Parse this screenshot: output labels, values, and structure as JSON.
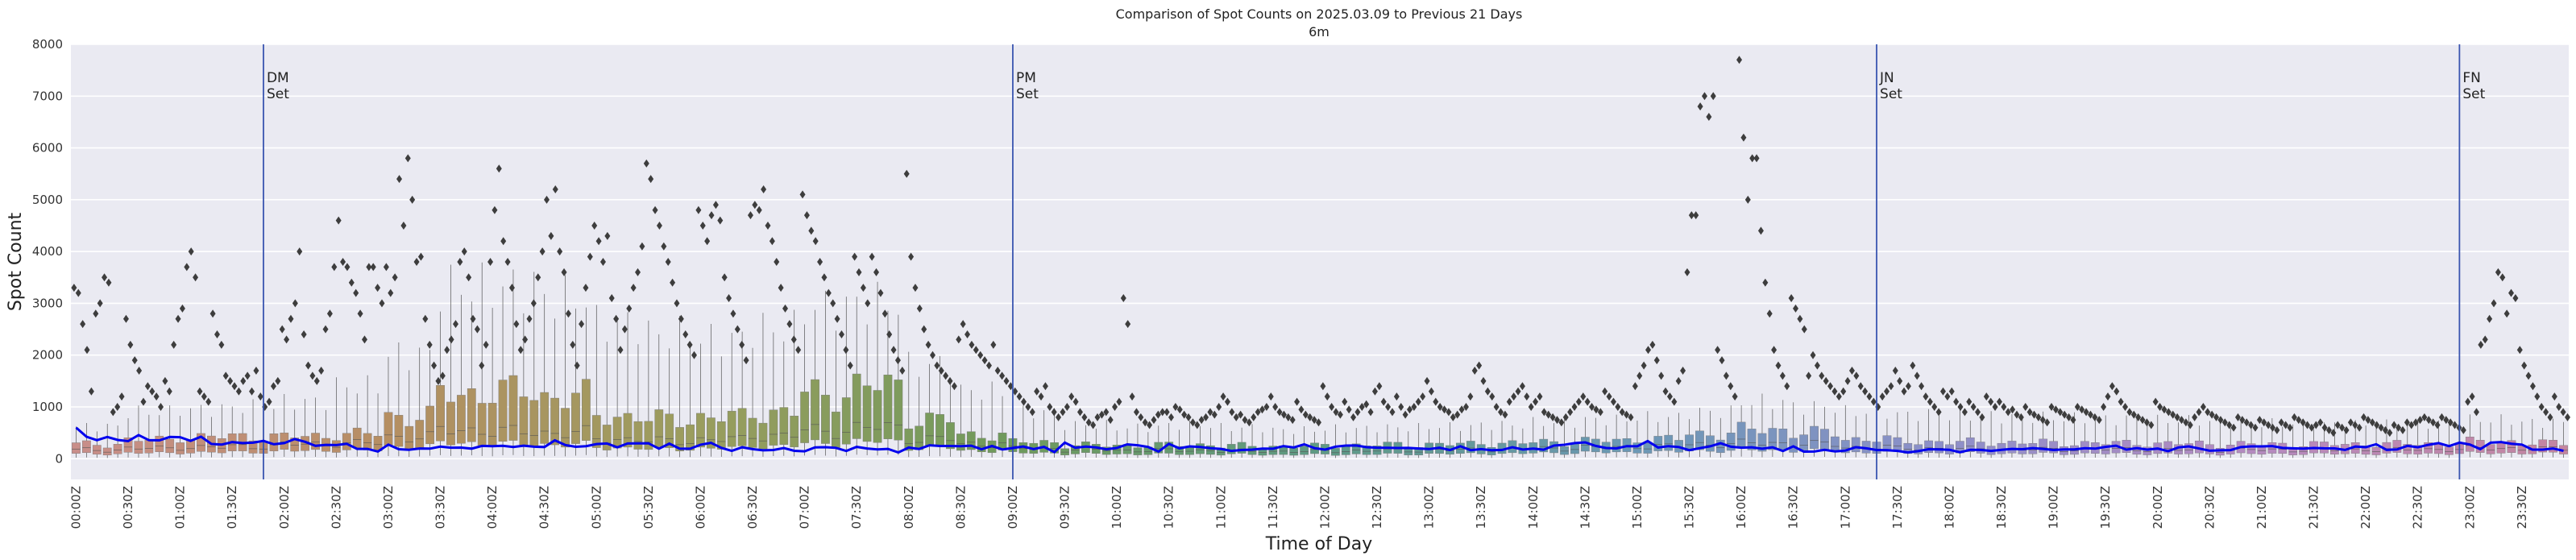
{
  "chart_data": {
    "type": "box",
    "title": "Comparison of Spot Counts on 2025.03.09 to Previous 21 Days",
    "subtitle": "6m",
    "xlabel": "Time of Day",
    "ylabel": "Spot Count",
    "ylim": [
      -400,
      8000
    ],
    "yticks": [
      0,
      1000,
      2000,
      3000,
      4000,
      5000,
      6000,
      7000,
      8000
    ],
    "xticks": [
      "00:00Z",
      "00:30Z",
      "01:00Z",
      "01:30Z",
      "02:00Z",
      "02:30Z",
      "03:00Z",
      "03:30Z",
      "04:00Z",
      "04:30Z",
      "05:00Z",
      "05:30Z",
      "06:00Z",
      "06:30Z",
      "07:00Z",
      "07:30Z",
      "08:00Z",
      "08:30Z",
      "09:00Z",
      "09:30Z",
      "10:00Z",
      "10:30Z",
      "11:00Z",
      "11:30Z",
      "12:00Z",
      "12:30Z",
      "13:00Z",
      "13:30Z",
      "14:00Z",
      "14:30Z",
      "15:00Z",
      "15:30Z",
      "16:00Z",
      "16:30Z",
      "17:00Z",
      "17:30Z",
      "18:00Z",
      "18:30Z",
      "19:00Z",
      "19:30Z",
      "20:00Z",
      "20:30Z",
      "21:00Z",
      "21:30Z",
      "22:00Z",
      "22:30Z",
      "23:00Z",
      "23:30Z"
    ],
    "slot_minutes": 6,
    "slots_per_day": 240,
    "grid": true,
    "colors": {
      "background": "#eaeaf2",
      "grid": "#ffffff",
      "current_day_line": "#0000ee",
      "event_line": "#3a55b0",
      "outlier": "#3d3d3d",
      "whisker": "#555555",
      "box_colors": [
        "#c98e8a",
        "#b58e62",
        "#9a9d5e",
        "#6f9a5c",
        "#5e9a85",
        "#6b98b5",
        "#8d8fc9",
        "#b58ac0",
        "#c485a0"
      ]
    },
    "box_profile_note": "per 30-minute block: [median, q3, upper whisker] in spot counts",
    "box_profile": [
      [
        170,
        280,
        620
      ],
      [
        200,
        360,
        900
      ],
      [
        220,
        420,
        950
      ],
      [
        240,
        430,
        1000
      ],
      [
        280,
        430,
        1100
      ],
      [
        300,
        480,
        1400
      ],
      [
        420,
        820,
        2000
      ],
      [
        550,
        1250,
        3300
      ],
      [
        520,
        1300,
        3300
      ],
      [
        500,
        1200,
        3100
      ],
      [
        380,
        820,
        2600
      ],
      [
        340,
        760,
        2400
      ],
      [
        370,
        800,
        2300
      ],
      [
        450,
        900,
        2500
      ],
      [
        540,
        1250,
        2900
      ],
      [
        600,
        1400,
        3000
      ],
      [
        380,
        760,
        1800
      ],
      [
        280,
        460,
        1300
      ],
      [
        200,
        320,
        900
      ],
      [
        170,
        260,
        650
      ],
      [
        160,
        260,
        600
      ],
      [
        160,
        270,
        650
      ],
      [
        150,
        250,
        600
      ],
      [
        140,
        240,
        550
      ],
      [
        150,
        260,
        580
      ],
      [
        160,
        270,
        600
      ],
      [
        170,
        280,
        620
      ],
      [
        180,
        300,
        650
      ],
      [
        200,
        320,
        700
      ],
      [
        220,
        350,
        750
      ],
      [
        240,
        380,
        800
      ],
      [
        280,
        480,
        900
      ],
      [
        300,
        560,
        1100
      ],
      [
        280,
        500,
        1000
      ],
      [
        220,
        380,
        900
      ],
      [
        200,
        330,
        850
      ],
      [
        190,
        320,
        820
      ],
      [
        180,
        310,
        800
      ],
      [
        180,
        300,
        780
      ],
      [
        180,
        300,
        760
      ],
      [
        170,
        290,
        740
      ],
      [
        170,
        280,
        700
      ],
      [
        170,
        280,
        680
      ],
      [
        170,
        280,
        660
      ],
      [
        175,
        285,
        660
      ],
      [
        180,
        290,
        680
      ],
      [
        200,
        330,
        750
      ],
      [
        190,
        300,
        700
      ]
    ],
    "series": [
      {
        "values_note": "spot counts per 6-minute slot, on 2025.03.09",
        "values": [
          600,
          424,
          357,
          420,
          362,
          339,
          457,
          357,
          355,
          420,
          415,
          344,
          425,
          285,
          274,
          320,
          302,
          310,
          344,
          278,
          302,
          379,
          326,
          249,
          267,
          263,
          287,
          190,
          190,
          138,
          272,
          184,
          172,
          197,
          194,
          233,
          213,
          214,
          195,
          247,
          241,
          248,
          227,
          251,
          232,
          225,
          355,
          265,
          230,
          243,
          283,
          294,
          220,
          294,
          295,
          297,
          194,
          291,
          193,
          192,
          270,
          306,
          210,
          151,
          220,
          185,
          162,
          168,
          206,
          153,
          143,
          219,
          222,
          210,
          149,
          228,
          198,
          180,
          190,
          121,
          216,
          188,
          260,
          246,
          246,
          243,
          252,
          183,
          245,
          178,
          207,
          234,
          187,
          228,
          128,
          311,
          211,
          235,
          218,
          181,
          208,
          277,
          260,
          227,
          138,
          286,
          201,
          237,
          226,
          202,
          190,
          151,
          167,
          175,
          194,
          193,
          244,
          217,
          279,
          204,
          176,
          232,
          254,
          255,
          223,
          213,
          211,
          206,
          209,
          198,
          187,
          213,
          168,
          241,
          164,
          185,
          163,
          169,
          223,
          177,
          196,
          174,
          253,
          269,
          301,
          315,
          247,
          207,
          199,
          242,
          239,
          341,
          216,
          243,
          226,
          164,
          204,
          240,
          299,
          231,
          213,
          220,
          193,
          221,
          147,
          239,
          137,
          139,
          171,
          141,
          157,
          222,
          201,
          167,
          164,
          151,
          121,
          146,
          184,
          179,
          172,
          124,
          173,
          170,
          150,
          173,
          190,
          184,
          205,
          190,
          168,
          178,
          179,
          204,
          194,
          228,
          251,
          175,
          203,
          175,
          196,
          146,
          217,
          237,
          196,
          154,
          162,
          166,
          225,
          237,
          238,
          244,
          208,
          200,
          196,
          207,
          201,
          199,
          169,
          234,
          223,
          280,
          171,
          178,
          249,
          220,
          268,
          301,
          243,
          311,
          274,
          185,
          310,
          321,
          289,
          272,
          176,
          175,
          197,
          152
        ]
      }
    ],
    "annotations": [
      {
        "label": "DM",
        "label2": "Set",
        "x": "01:30Z",
        "slot": 18
      },
      {
        "label": "PM",
        "label2": "Set",
        "x": "09:00Z",
        "slot": 90
      },
      {
        "label": "JN",
        "label2": "Set",
        "x": "17:30Z",
        "slot": 173
      },
      {
        "label": "FN",
        "label2": "Set",
        "x": "23:00Z",
        "slot": 229
      }
    ],
    "outliers_note": "outlier spot counts per 30-minute block",
    "outliers": [
      [
        3300,
        3200,
        2600,
        2100,
        1300,
        2800,
        3000,
        3500,
        3400,
        900,
        1000,
        1200
      ],
      [
        2700,
        2200,
        1900,
        1700,
        1100,
        1400,
        1300,
        1200,
        1000,
        1500,
        1300,
        2200
      ],
      [
        2700,
        2900,
        3700,
        4000,
        3500,
        1300,
        1200,
        1100,
        2800,
        2400,
        2200,
        1600
      ],
      [
        1500,
        1400,
        1300,
        1500,
        1600,
        1300,
        1700,
        1200,
        1000,
        1100,
        1400,
        1500
      ],
      [
        2500,
        2300,
        2700,
        3000,
        4000,
        2400,
        1800,
        1600,
        1500,
        1700,
        2500,
        2800
      ],
      [
        3700,
        4600,
        3800,
        3700,
        3400,
        3200,
        2800,
        2300,
        3700,
        3700,
        3300,
        3000
      ],
      [
        3700,
        3200,
        3500,
        5400,
        4500,
        5800,
        5000,
        3800,
        3900,
        2700,
        2200,
        1800
      ],
      [
        1500,
        1600,
        2100,
        2300,
        2600,
        3800,
        4000,
        3500,
        2700,
        2500,
        1800,
        2200
      ],
      [
        3800,
        4800,
        5600,
        4200,
        3800,
        3300,
        2600,
        2100,
        2300,
        2700,
        3000,
        3500
      ],
      [
        4000,
        5000,
        4300,
        5200,
        4000,
        3600,
        2800,
        2200,
        1800,
        2600,
        3300,
        3900
      ],
      [
        4500,
        4200,
        3800,
        4300,
        3100,
        2700,
        2100,
        2500,
        2900,
        3300,
        3600,
        4100
      ],
      [
        5700,
        5400,
        4800,
        4500,
        4100,
        3800,
        3400,
        3000,
        2700,
        2400,
        2200,
        2000
      ],
      [
        4800,
        4500,
        4200,
        4700,
        4900,
        4600,
        3500,
        3100,
        2800,
        2500,
        2200,
        1900
      ],
      [
        4700,
        4900,
        4800,
        5200,
        4500,
        4200,
        3800,
        3300,
        2900,
        2600,
        2300,
        2100
      ],
      [
        5100,
        4700,
        4400,
        4200,
        3800,
        3500,
        3200,
        3000,
        2700,
        2400,
        2100,
        1800
      ],
      [
        3900,
        3600,
        3300,
        3000,
        3900,
        3600,
        3200,
        2800,
        2400,
        2100,
        1900,
        1700
      ],
      [
        5500,
        3900,
        3300,
        2900,
        2500,
        2200,
        2000,
        1800,
        1700,
        1600,
        1500,
        1400
      ],
      [
        2300,
        2600,
        2400,
        2200,
        2100,
        2000,
        1900,
        1800,
        2200,
        1700,
        1600,
        1500
      ],
      [
        1400,
        1300,
        1200,
        1100,
        1000,
        900,
        1300,
        1200,
        1400,
        1000,
        900,
        800
      ],
      [
        900,
        1000,
        1200,
        1100,
        900,
        800,
        700,
        650,
        800,
        850,
        900,
        750
      ],
      [
        1000,
        1100,
        3100,
        2600,
        1200,
        900,
        800,
        700,
        650,
        750,
        850,
        900
      ],
      [
        900,
        800,
        1000,
        950,
        850,
        800,
        700,
        650,
        750,
        800,
        900,
        850
      ],
      [
        1000,
        1200,
        1100,
        900,
        800,
        850,
        750,
        700,
        800,
        900,
        950,
        1000
      ],
      [
        1200,
        1000,
        900,
        850,
        800,
        750,
        1100,
        950,
        850,
        800,
        750,
        700
      ],
      [
        1400,
        1200,
        1000,
        900,
        850,
        1100,
        950,
        800,
        900,
        1000,
        1050,
        900
      ],
      [
        1300,
        1400,
        1100,
        1000,
        900,
        1200,
        1000,
        850,
        950,
        1000,
        1100,
        1200
      ],
      [
        1500,
        1300,
        1100,
        1000,
        950,
        900,
        800,
        850,
        950,
        1000,
        1200,
        1700
      ],
      [
        1800,
        1500,
        1300,
        1200,
        1000,
        900,
        850,
        1100,
        1200,
        1300,
        1400,
        1200
      ],
      [
        1000,
        1100,
        1200,
        900,
        850,
        800,
        750,
        700,
        800,
        900,
        1000,
        1100
      ],
      [
        1200,
        1100,
        1000,
        950,
        900,
        1300,
        1200,
        1100,
        1000,
        900,
        850,
        800
      ],
      [
        1400,
        1600,
        1800,
        2100,
        2200,
        1900,
        1600,
        1300,
        1200,
        1100,
        1500,
        1700
      ],
      [
        3600,
        4700,
        4700,
        6800,
        7000,
        6600,
        7000,
        2100,
        1900,
        1600,
        1400,
        1200
      ],
      [
        7700,
        6200,
        5000,
        5800,
        5800,
        4400,
        3400,
        2800,
        2100,
        1800,
        1600,
        1400
      ],
      [
        3100,
        2900,
        2700,
        2500,
        1600,
        2000,
        1800,
        1600,
        1500,
        1400,
        1300,
        1200
      ],
      [
        1300,
        1500,
        1700,
        1600,
        1400,
        1300,
        1200,
        1100,
        1000,
        1200,
        1300,
        1400
      ],
      [
        1700,
        1500,
        1300,
        1400,
        1800,
        1600,
        1400,
        1200,
        1100,
        1000,
        900,
        1300
      ],
      [
        1200,
        1300,
        1100,
        1000,
        900,
        1100,
        1000,
        900,
        800,
        1200,
        1100,
        1000
      ],
      [
        1100,
        1000,
        900,
        950,
        850,
        800,
        1000,
        900,
        850,
        800,
        750,
        700
      ],
      [
        1000,
        950,
        900,
        850,
        800,
        750,
        1000,
        950,
        900,
        850,
        800,
        750
      ],
      [
        1000,
        1200,
        1400,
        1300,
        1100,
        1000,
        900,
        850,
        800,
        750,
        700,
        650
      ],
      [
        1100,
        1000,
        950,
        900,
        850,
        800,
        750,
        700,
        650,
        800,
        900,
        1000
      ],
      [
        900,
        850,
        800,
        750,
        700,
        650,
        600,
        800,
        750,
        700,
        650,
        600
      ],
      [
        750,
        700,
        650,
        600,
        550,
        700,
        650,
        600,
        800,
        750,
        700,
        650
      ],
      [
        600,
        650,
        700,
        600,
        550,
        500,
        650,
        600,
        550,
        700,
        650,
        600
      ],
      [
        800,
        750,
        700,
        650,
        600,
        550,
        500,
        650,
        600,
        550,
        700,
        650
      ],
      [
        700,
        750,
        800,
        750,
        700,
        650,
        800,
        750,
        700,
        650,
        600,
        550
      ],
      [
        1100,
        1200,
        900,
        2200,
        2300,
        2700,
        3000,
        3600,
        3500,
        2800,
        3200,
        3100
      ],
      [
        2100,
        1800,
        1600,
        1400,
        1200,
        1000,
        900,
        800,
        1200,
        1000,
        900,
        800
      ]
    ]
  }
}
